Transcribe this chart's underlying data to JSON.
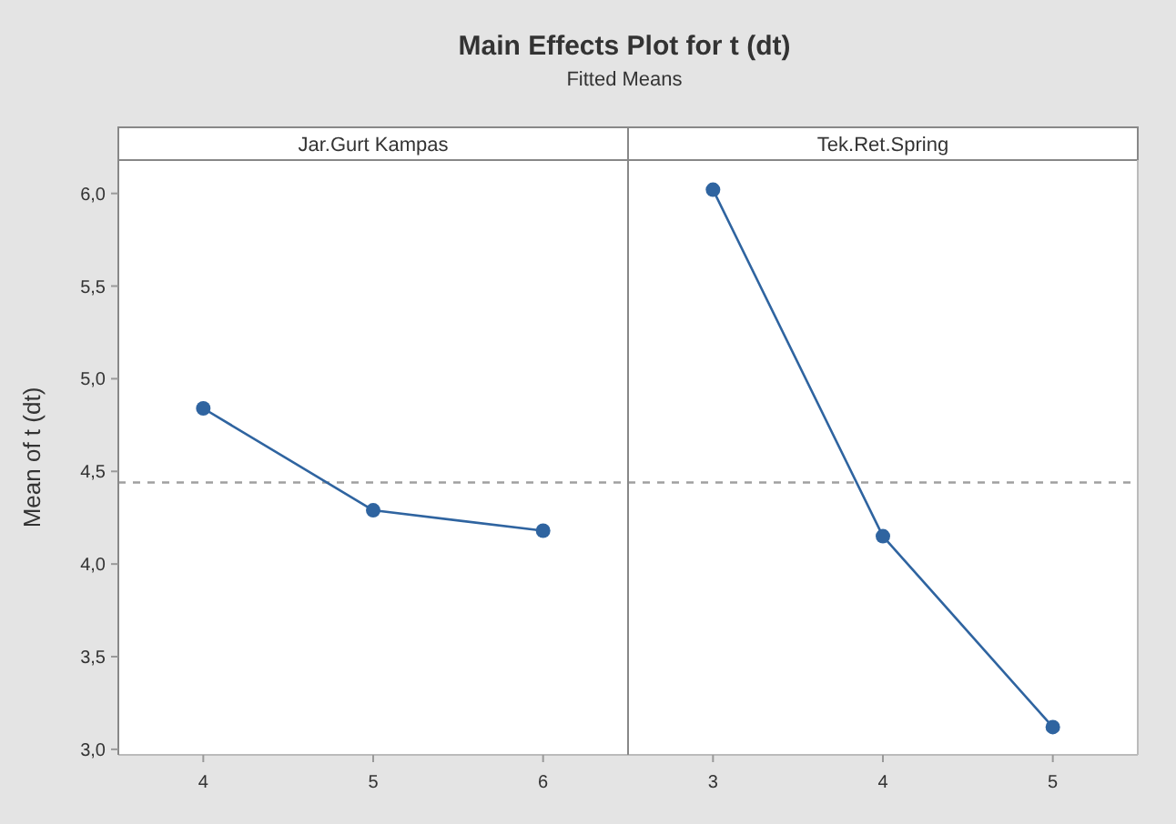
{
  "chart_data": [
    {
      "type": "line",
      "title": "Main Effects Plot for t (dt)",
      "subtitle": "Fitted Means",
      "xlabel": "Jar.Gurt Kampas",
      "ylabel": "Mean of t (dt)",
      "categories": [
        "4",
        "5",
        "6"
      ],
      "series": [
        {
          "color": "#2f64a0",
          "values": [
            4.84,
            4.29,
            4.18
          ]
        }
      ],
      "ylim": [
        2.97,
        6.18
      ],
      "yticks": [
        {
          "value": 3,
          "label": "3,0"
        },
        {
          "value": 3.5,
          "label": "3,5"
        },
        {
          "value": 4,
          "label": "4,0"
        },
        {
          "value": 4.5,
          "label": "4,5"
        },
        {
          "value": 5,
          "label": "5,0"
        },
        {
          "value": 5.5,
          "label": "5,5"
        },
        {
          "value": 6,
          "label": "6,0"
        }
      ],
      "ref_lines": [
        {
          "axis": "y",
          "value": 4.44,
          "color": "#a0a0a0",
          "line_style": "dashed"
        }
      ],
      "marker": "circle",
      "grid": false
    },
    {
      "type": "line",
      "xlabel": "Tek.Ret.Spring",
      "categories": [
        "3",
        "4",
        "5"
      ],
      "series": [
        {
          "color": "#2f64a0",
          "values": [
            6.02,
            4.15,
            3.12
          ]
        }
      ],
      "ylim": [
        2.97,
        6.18
      ],
      "ref_lines": [
        {
          "axis": "y",
          "value": 4.44,
          "color": "#a0a0a0",
          "line_style": "dashed"
        }
      ],
      "marker": "circle",
      "grid": false,
      "tick_labels": "x"
    }
  ]
}
